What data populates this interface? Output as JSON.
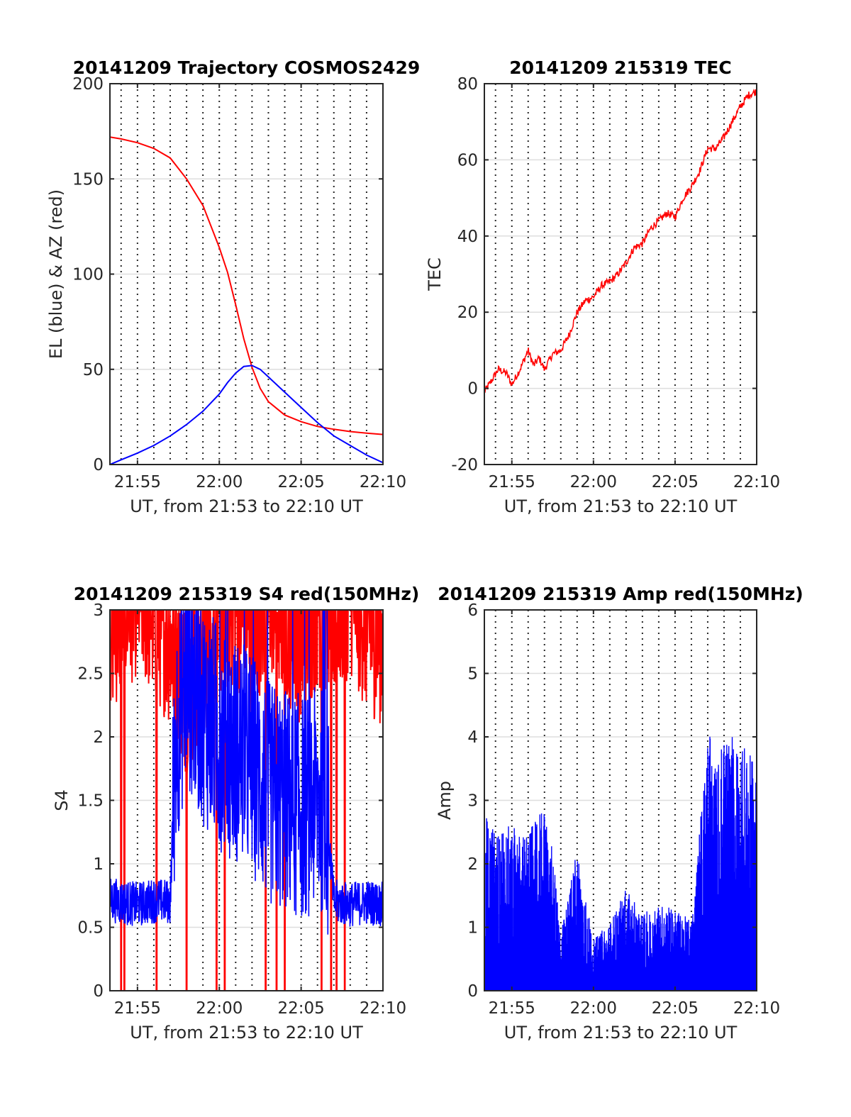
{
  "colors": {
    "red": "#ff0000",
    "blue": "#0000ff"
  },
  "chart_data": [
    {
      "type": "line",
      "title": "20141209 Trajectory COSMOS2429",
      "xlabel": "UT, from 21:53 to 22:10 UT",
      "ylabel": "EL (blue) & AZ (red)",
      "xlim": [
        "21:53:19",
        "22:10:00"
      ],
      "ylim": [
        0,
        200
      ],
      "xticks": [
        "21:55",
        "22:00",
        "22:05",
        "22:10"
      ],
      "yticks": [
        "0",
        "50",
        "100",
        "150",
        "200"
      ],
      "grid": true,
      "series": [
        {
          "color": "red",
          "x": [
            "21:53:19",
            "21:54:00",
            "21:55:00",
            "21:56:00",
            "21:57:00",
            "21:58:00",
            "21:59:00",
            "22:00:00",
            "22:00:30",
            "22:01:00",
            "22:01:30",
            "22:02:00",
            "22:02:30",
            "22:03:00",
            "22:04:00",
            "22:05:00",
            "22:06:00",
            "22:07:00",
            "22:08:00",
            "22:09:00",
            "22:10:00"
          ],
          "values": [
            172,
            171,
            169,
            166,
            161,
            150,
            136,
            114,
            101,
            84,
            66,
            51,
            40,
            33,
            26,
            22.5,
            20,
            18.5,
            17.3,
            16.5,
            15.8
          ]
        },
        {
          "color": "blue",
          "x": [
            "21:53:19",
            "21:54:00",
            "21:55:00",
            "21:56:00",
            "21:57:00",
            "21:58:00",
            "21:59:00",
            "22:00:00",
            "22:00:30",
            "22:01:00",
            "22:01:30",
            "22:02:00",
            "22:02:30",
            "22:03:00",
            "22:04:00",
            "22:05:00",
            "22:06:00",
            "22:07:00",
            "22:08:00",
            "22:09:00",
            "22:10:00"
          ],
          "values": [
            0,
            2.5,
            6,
            10,
            15,
            21,
            28,
            37,
            43,
            48,
            51.5,
            52,
            50,
            46,
            38,
            30,
            22,
            15,
            10,
            5,
            1
          ]
        }
      ]
    },
    {
      "type": "line",
      "title": "20141209 215319 TEC",
      "xlabel": "UT, from 21:53 to 22:10 UT",
      "ylabel": "TEC",
      "xlim": [
        "21:53:19",
        "22:10:00"
      ],
      "ylim": [
        -20,
        80
      ],
      "xticks": [
        "21:55",
        "22:00",
        "22:05",
        "22:10"
      ],
      "yticks": [
        "-20",
        "0",
        "20",
        "40",
        "60",
        "80"
      ],
      "grid": true,
      "series": [
        {
          "color": "red",
          "x": [
            "21:53:19",
            "21:53:45",
            "21:54:10",
            "21:54:40",
            "21:55:00",
            "21:55:30",
            "21:56:00",
            "21:56:20",
            "21:56:40",
            "21:57:00",
            "21:57:30",
            "21:58:00",
            "21:58:30",
            "21:59:00",
            "21:59:30",
            "22:00:00",
            "22:00:30",
            "22:01:00",
            "22:01:30",
            "22:02:00",
            "22:02:30",
            "22:03:00",
            "22:03:30",
            "22:04:00",
            "22:04:30",
            "22:05:00",
            "22:05:30",
            "22:06:00",
            "22:06:30",
            "22:07:00",
            "22:07:30",
            "22:08:00",
            "22:08:30",
            "22:09:00",
            "22:09:30",
            "22:10:00"
          ],
          "values": [
            -1,
            2,
            5,
            4,
            1,
            5,
            10,
            6,
            8,
            5,
            9,
            10,
            14,
            20,
            23,
            24,
            27,
            28,
            30,
            33,
            37,
            38,
            42,
            44,
            46,
            45,
            50,
            53,
            57,
            63,
            63,
            66,
            70,
            74,
            77,
            78
          ]
        }
      ]
    },
    {
      "type": "line",
      "title": "20141209 215319 S4 red(150MHz)",
      "xlabel": "UT, from 21:53 to 22:10 UT",
      "ylabel": "S4",
      "xlim": [
        "21:53:19",
        "22:10:00"
      ],
      "ylim": [
        0,
        3
      ],
      "xticks": [
        "21:55",
        "22:05",
        "22:10"
      ],
      "xticks_all": [
        "21:55",
        "22:00",
        "22:05",
        "22:10"
      ],
      "yticks": [
        "0",
        "0.5",
        "1",
        "1.5",
        "2",
        "2.5",
        "3"
      ],
      "grid": true,
      "series": [
        {
          "color": "red",
          "x": [
            "21:53:19",
            "21:54:00",
            "21:55:00",
            "21:56:00",
            "21:57:00",
            "21:58:00",
            "21:59:00",
            "22:00:00",
            "22:01:00",
            "22:02:00",
            "22:03:00",
            "22:04:00",
            "22:05:00",
            "22:06:00",
            "22:07:00",
            "22:08:00",
            "22:09:00",
            "22:10:00"
          ],
          "values": [
            2.6,
            2.7,
            2.9,
            2.7,
            2.5,
            2.1,
            2.4,
            2.7,
            2.8,
            2.6,
            2.9,
            2.7,
            2.5,
            2.8,
            2.7,
            2.9,
            2.6,
            2.5
          ],
          "dropouts": [
            "21:54:00",
            "21:54:12",
            "21:56:10",
            "21:58:00",
            "21:59:50",
            "22:00:20",
            "22:02:50",
            "22:03:30",
            "22:04:00",
            "22:06:15",
            "22:06:50",
            "22:07:10",
            "22:07:40"
          ]
        },
        {
          "color": "blue",
          "x": [
            "21:53:19",
            "21:54:00",
            "21:55:00",
            "21:56:00",
            "21:57:00",
            "21:57:20",
            "21:58:00",
            "21:59:00",
            "22:00:00",
            "22:01:00",
            "22:02:00",
            "22:03:00",
            "22:04:00",
            "22:05:00",
            "22:06:00",
            "22:06:30",
            "22:07:00",
            "22:08:00",
            "22:09:00",
            "22:10:00"
          ],
          "values": [
            0.72,
            0.7,
            0.68,
            0.71,
            0.7,
            2.0,
            2.5,
            2.2,
            2.0,
            1.9,
            1.8,
            1.55,
            1.5,
            1.45,
            1.5,
            1.5,
            0.7,
            0.68,
            0.7,
            0.68
          ]
        }
      ]
    },
    {
      "type": "bar",
      "title": "20141209 215319 Amp red(150MHz)",
      "xlabel": "UT, from 21:53 to 22:10 UT",
      "ylabel": "Amp",
      "xlim": [
        "21:53:19",
        "22:10:00"
      ],
      "ylim": [
        0,
        6
      ],
      "xticks": [
        "21:55",
        "22:00",
        "22:05",
        "22:10"
      ],
      "yticks": [
        "0",
        "1",
        "2",
        "3",
        "4",
        "5",
        "6"
      ],
      "grid": true,
      "series": [
        {
          "color": "blue",
          "x": [
            "21:53:19",
            "21:54:00",
            "21:55:00",
            "21:56:00",
            "21:57:00",
            "21:57:30",
            "21:58:00",
            "21:59:00",
            "22:00:00",
            "22:01:00",
            "22:02:00",
            "22:03:00",
            "22:04:00",
            "22:05:00",
            "22:06:00",
            "22:07:00",
            "22:07:30",
            "22:08:00",
            "22:09:00",
            "22:10:00"
          ],
          "values": [
            2.8,
            2.6,
            2.6,
            2.5,
            2.9,
            2.2,
            0.9,
            2.3,
            0.8,
            1.1,
            1.6,
            1.2,
            1.4,
            1.3,
            1.1,
            4.2,
            3.5,
            4.1,
            3.9,
            3.6
          ]
        }
      ]
    }
  ]
}
